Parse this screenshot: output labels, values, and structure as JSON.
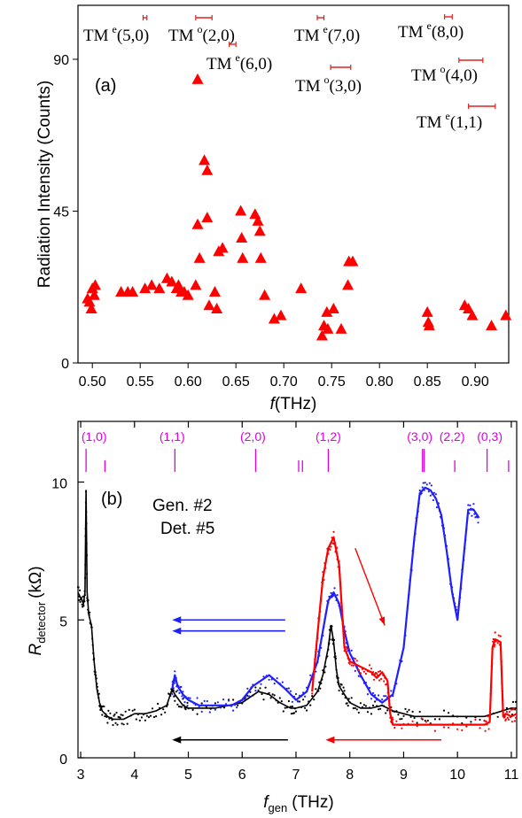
{
  "chart_data": [
    {
      "type": "scatter",
      "panel_label": "(a)",
      "xlabel_italic": "f",
      "xlabel_rest": "(THz)",
      "ylabel": "Radiation Intensity (Counts)",
      "xlim": [
        0.485,
        0.935
      ],
      "ylim": [
        0,
        106
      ],
      "xticks": [
        "0.50",
        "0.55",
        "0.60",
        "0.65",
        "0.70",
        "0.75",
        "0.80",
        "0.85",
        "0.90"
      ],
      "yticks": [
        "0",
        "45",
        "90"
      ],
      "marker_color": "#ff0000",
      "points": [
        [
          0.495,
          19
        ],
        [
          0.497,
          18
        ],
        [
          0.499,
          16
        ],
        [
          0.5,
          22
        ],
        [
          0.502,
          20
        ],
        [
          0.503,
          23
        ],
        [
          0.53,
          21
        ],
        [
          0.537,
          21
        ],
        [
          0.542,
          21
        ],
        [
          0.555,
          22
        ],
        [
          0.562,
          23
        ],
        [
          0.57,
          22
        ],
        [
          0.578,
          25
        ],
        [
          0.583,
          24
        ],
        [
          0.588,
          22
        ],
        [
          0.59,
          23
        ],
        [
          0.593,
          21
        ],
        [
          0.596,
          21
        ],
        [
          0.6,
          20
        ],
        [
          0.608,
          23
        ],
        [
          0.61,
          84
        ],
        [
          0.61,
          41
        ],
        [
          0.612,
          31
        ],
        [
          0.617,
          60
        ],
        [
          0.62,
          57
        ],
        [
          0.62,
          43
        ],
        [
          0.622,
          17
        ],
        [
          0.628,
          21
        ],
        [
          0.63,
          16
        ],
        [
          0.632,
          33
        ],
        [
          0.636,
          34
        ],
        [
          0.655,
          45
        ],
        [
          0.656,
          37
        ],
        [
          0.657,
          31
        ],
        [
          0.67,
          44
        ],
        [
          0.673,
          42
        ],
        [
          0.675,
          39
        ],
        [
          0.676,
          31
        ],
        [
          0.68,
          20
        ],
        [
          0.69,
          13
        ],
        [
          0.697,
          14
        ],
        [
          0.718,
          22
        ],
        [
          0.74,
          8
        ],
        [
          0.742,
          11
        ],
        [
          0.745,
          15
        ],
        [
          0.746,
          10
        ],
        [
          0.752,
          16
        ],
        [
          0.76,
          10
        ],
        [
          0.767,
          23
        ],
        [
          0.768,
          30
        ],
        [
          0.772,
          30
        ],
        [
          0.85,
          15
        ],
        [
          0.851,
          12
        ],
        [
          0.852,
          11
        ],
        [
          0.889,
          17
        ],
        [
          0.893,
          16
        ],
        [
          0.897,
          14
        ],
        [
          0.917,
          11
        ],
        [
          0.932,
          14
        ]
      ],
      "mode_labels": [
        {
          "base": "TM",
          "sup": "e",
          "idx": "(5,0)"
        },
        {
          "base": "TM",
          "sup": "o",
          "idx": "(2,0)"
        },
        {
          "base": "TM",
          "sup": "e",
          "idx": "(6,0)"
        },
        {
          "base": "TM",
          "sup": "e",
          "idx": "(7,0)"
        },
        {
          "base": "TM",
          "sup": "o",
          "idx": "(3,0)"
        },
        {
          "base": "TM",
          "sup": "e",
          "idx": "(8,0)"
        },
        {
          "base": "TM",
          "sup": "o",
          "idx": "(4,0)"
        },
        {
          "base": "TM",
          "sup": "e",
          "idx": "(1,1)"
        }
      ],
      "mode_ranges": [
        [
          0.553,
          0.557
        ],
        [
          0.608,
          0.625
        ],
        [
          0.643,
          0.65
        ],
        [
          0.735,
          0.742
        ],
        [
          0.749,
          0.77
        ],
        [
          0.868,
          0.876
        ],
        [
          0.883,
          0.908
        ],
        [
          0.893,
          0.921
        ]
      ]
    },
    {
      "type": "line",
      "panel_label": "(b)",
      "ylabel_main": "R",
      "ylabel_sub": "detector",
      "ylabel_unit": "(kΩ)",
      "xlabel_main": "f",
      "xlabel_sub": "gen",
      "xlabel_unit": "(THz)",
      "xlim": [
        2.95,
        11.1
      ],
      "ylim": [
        0,
        12.2
      ],
      "xticks": [
        "3",
        "4",
        "5",
        "6",
        "7",
        "8",
        "9",
        "10",
        "11"
      ],
      "yticks": [
        "0",
        "5",
        "10"
      ],
      "legend": [
        "Gen. #2",
        "Det. #5"
      ],
      "magenta_color": "#e000e0",
      "mode_markers": [
        "(1,0)",
        "(1,1)",
        "(2,0)",
        "(1,2)",
        "(3,0)",
        "(2,2)",
        "(0,3)"
      ],
      "mode_label_x": [
        3.25,
        4.7,
        6.2,
        7.6,
        9.3,
        9.9,
        10.6
      ],
      "mode_lines": [
        3.1,
        3.45,
        4.75,
        6.25,
        7.05,
        7.12,
        7.6,
        9.35,
        9.38,
        9.95,
        10.55,
        10.95
      ],
      "series": [
        {
          "name": "black",
          "color": "#000000",
          "x": [
            2.95,
            3.0,
            3.05,
            3.08,
            3.1,
            3.12,
            3.15,
            3.2,
            3.25,
            3.3,
            3.35,
            3.4,
            3.5,
            3.6,
            3.7,
            3.8,
            4.0,
            4.2,
            4.4,
            4.6,
            4.7,
            4.75,
            4.9,
            5.0,
            5.5,
            6.0,
            6.3,
            6.5,
            6.7,
            6.9,
            7.0,
            7.2,
            7.4,
            7.5,
            7.6,
            7.65,
            7.7,
            7.75,
            7.8,
            7.9,
            8.0,
            8.2,
            8.4,
            8.6,
            8.8,
            9.0,
            9.2,
            9.5,
            10.0,
            10.5,
            11.0,
            11.1
          ],
          "y": [
            6.0,
            5.8,
            5.6,
            6.0,
            9.7,
            6.0,
            5.2,
            4.8,
            3.5,
            2.5,
            2.0,
            1.7,
            1.5,
            1.4,
            1.4,
            1.4,
            1.6,
            1.6,
            1.7,
            1.9,
            2.5,
            2.3,
            1.9,
            1.8,
            1.8,
            2.0,
            2.4,
            2.3,
            2.0,
            1.8,
            1.8,
            1.9,
            2.4,
            3.0,
            4.0,
            4.8,
            4.2,
            3.2,
            2.6,
            2.3,
            2.0,
            1.8,
            1.8,
            1.9,
            1.7,
            1.6,
            1.5,
            1.5,
            1.5,
            1.5,
            1.8,
            1.8
          ]
        },
        {
          "name": "blue",
          "color": "#2020ff",
          "x": [
            4.7,
            4.75,
            4.8,
            4.9,
            5.0,
            5.2,
            5.5,
            5.8,
            6.0,
            6.2,
            6.5,
            6.8,
            7.0,
            7.2,
            7.4,
            7.5,
            7.6,
            7.7,
            7.8,
            7.9,
            8.0,
            8.2,
            8.4,
            8.6,
            8.8,
            9.0,
            9.1,
            9.2,
            9.3,
            9.4,
            9.5,
            9.6,
            9.7,
            9.8,
            9.9,
            10.0,
            10.1,
            10.2,
            10.3,
            10.4
          ],
          "y": [
            2.5,
            3.0,
            2.6,
            2.3,
            2.1,
            1.9,
            1.9,
            1.9,
            2.1,
            2.6,
            3.0,
            2.5,
            2.1,
            2.4,
            3.5,
            4.6,
            5.7,
            6.0,
            5.6,
            4.6,
            3.8,
            3.0,
            2.3,
            2.0,
            2.3,
            4.0,
            6.0,
            8.0,
            9.6,
            9.8,
            9.7,
            9.4,
            8.8,
            7.5,
            6.0,
            5.0,
            7.0,
            9.0,
            9.0,
            8.7
          ]
        },
        {
          "name": "red",
          "color": "#ff0000",
          "x": [
            7.3,
            7.4,
            7.5,
            7.6,
            7.7,
            7.75,
            7.8,
            7.85,
            7.9,
            8.0,
            8.2,
            8.4,
            8.5,
            8.6,
            8.7,
            8.75,
            8.8,
            9.0,
            9.5,
            10.0,
            10.5,
            10.6,
            10.65,
            10.7,
            10.8,
            10.85,
            10.9,
            11.0,
            11.1
          ],
          "y": [
            2.4,
            4.5,
            6.5,
            7.6,
            8.0,
            7.5,
            7.0,
            5.5,
            4.0,
            3.5,
            3.3,
            3.1,
            2.9,
            3.1,
            2.8,
            1.6,
            1.2,
            1.2,
            1.2,
            1.2,
            1.2,
            1.3,
            4.0,
            4.3,
            4.2,
            1.5,
            1.6,
            1.5,
            1.6
          ]
        }
      ],
      "arrows": [
        {
          "color": "#2020ff",
          "from": 6.8,
          "to": 4.7,
          "y": 5.0
        },
        {
          "color": "#2020ff",
          "from": 6.8,
          "to": 4.7,
          "y": 4.6
        },
        {
          "color": "#000000",
          "from": 6.85,
          "to": 4.7,
          "y": 0.65
        },
        {
          "color": "#ff0000",
          "from": 9.7,
          "to": 7.55,
          "y": 0.65
        }
      ],
      "diag_arrow": {
        "color": "#ff0000",
        "x1": 8.1,
        "y1": 7.6,
        "x2": 8.65,
        "y2": 4.8
      }
    }
  ]
}
